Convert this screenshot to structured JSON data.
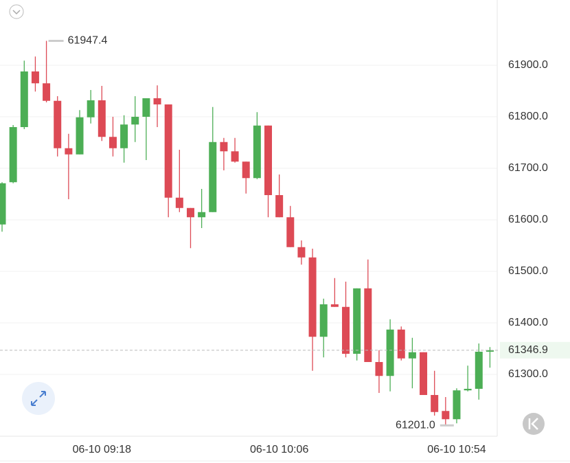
{
  "chart_data": {
    "type": "candlestick",
    "categories": [
      null,
      null,
      null,
      null,
      null,
      null,
      null,
      null,
      null,
      "06-10 09:18",
      null,
      null,
      null,
      null,
      null,
      null,
      null,
      null,
      null,
      null,
      null,
      null,
      null,
      null,
      null,
      "06-10 10:06",
      null,
      null,
      null,
      null,
      null,
      null,
      null,
      null,
      null,
      null,
      null,
      null,
      null,
      null,
      null,
      "06-10 10:54",
      null,
      null,
      null
    ],
    "open": [
      61591,
      61673,
      61780,
      61888,
      61865,
      61831,
      61739,
      61727,
      61799,
      61832,
      61761,
      61739,
      61785,
      61800,
      61836,
      61824,
      61643,
      61623,
      61605,
      61615,
      61751,
      61733,
      61713,
      61681,
      61783,
      61648,
      61605,
      61547,
      61527,
      61373,
      61436,
      61431,
      61340,
      61467,
      61324,
      61297,
      61387,
      61331,
      61343,
      61260,
      61229,
      61213,
      61269,
      61272,
      61344
    ],
    "high": [
      61673,
      61784,
      61909,
      61917,
      61947.4,
      61840,
      61767,
      61813,
      61852,
      61860,
      61800,
      61803,
      61840,
      61836,
      61861,
      61824,
      61736,
      61623,
      61660,
      61819,
      61759,
      61759,
      61713,
      61809,
      61783,
      61688,
      61627,
      61560,
      61544,
      61447,
      61487,
      61480,
      61467,
      61523,
      61347,
      61407,
      61393,
      61371,
      61343,
      61307,
      61256,
      61273,
      61317,
      61360,
      61353
    ],
    "low": [
      61577,
      61671,
      61776,
      61849,
      61828,
      61723,
      61640,
      61727,
      61787,
      61753,
      61723,
      61711,
      61751,
      61716,
      61780,
      61605,
      61615,
      61545,
      61584,
      61615,
      61696,
      61711,
      61651,
      61679,
      61605,
      61605,
      61547,
      61513,
      61307,
      61333,
      61431,
      61333,
      61327,
      61324,
      61264,
      61267,
      61327,
      61273,
      61260,
      61220,
      61201,
      61205,
      61267,
      61251,
      61313
    ],
    "close": [
      61671,
      61780,
      61888,
      61865,
      61831,
      61739,
      61727,
      61799,
      61832,
      61761,
      61739,
      61785,
      61800,
      61836,
      61824,
      61643,
      61623,
      61605,
      61615,
      61751,
      61733,
      61713,
      61681,
      61783,
      61648,
      61605,
      61547,
      61527,
      61373,
      61436,
      61431,
      61340,
      61467,
      61324,
      61297,
      61387,
      61331,
      61343,
      61260,
      61227,
      61213,
      61269,
      61272,
      61344,
      61346.9
    ],
    "ylim": [
      61180,
      62026.7
    ],
    "yticks": [
      {
        "value": 61300,
        "label": "61300.0"
      },
      {
        "value": 61400,
        "label": "61400.0"
      },
      {
        "value": 61500,
        "label": "61500.0"
      },
      {
        "value": 61600,
        "label": "61600.0"
      },
      {
        "value": 61700,
        "label": "61700.0"
      },
      {
        "value": 61800,
        "label": "61800.0"
      },
      {
        "value": 61900,
        "label": "61900.0"
      }
    ],
    "grid": true,
    "up_color": "#4cae55",
    "down_color": "#dd4a55",
    "high_label": {
      "value": 61947.4,
      "label": "61947.4"
    },
    "low_label": {
      "value": 61201,
      "label": "61201.0"
    },
    "last_price": {
      "value": 61346.9,
      "label": "61346.9"
    }
  }
}
